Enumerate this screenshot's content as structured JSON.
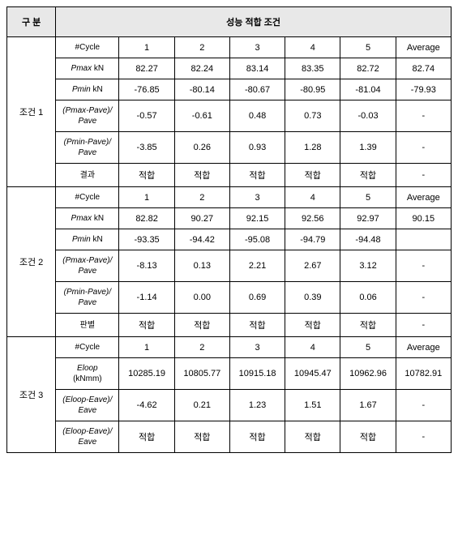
{
  "header": {
    "col1": "구 분",
    "merged": "성능 적합 조건"
  },
  "groups": [
    {
      "label": "조건 1",
      "rows": [
        {
          "label_html": "#Cycle",
          "values": [
            "1",
            "2",
            "3",
            "4",
            "5",
            "Average"
          ]
        },
        {
          "label_html": "<span class='italic'>Pmax</span> kN",
          "values": [
            "82.27",
            "82.24",
            "83.14",
            "83.35",
            "82.72",
            "82.74"
          ]
        },
        {
          "label_html": "<span class='italic'>Pmin</span> kN",
          "values": [
            "-76.85",
            "-80.14",
            "-80.67",
            "-80.95",
            "-81.04",
            "-79.93"
          ]
        },
        {
          "label_html": "<span class='italic'>(Pmax-Pave)/<br>Pave</span>",
          "values": [
            "-0.57",
            "-0.61",
            "0.48",
            "0.73",
            "-0.03",
            "-"
          ]
        },
        {
          "label_html": "<span class='italic'>(Pmin-Pave)/<br>Pave</span>",
          "values": [
            "-3.85",
            "0.26",
            "0.93",
            "1.28",
            "1.39",
            "-"
          ]
        },
        {
          "label_html": "결과",
          "values": [
            "적합",
            "적합",
            "적합",
            "적합",
            "적합",
            "-"
          ]
        }
      ]
    },
    {
      "label": "조건 2",
      "rows": [
        {
          "label_html": "#Cycle",
          "values": [
            "1",
            "2",
            "3",
            "4",
            "5",
            "Average"
          ]
        },
        {
          "label_html": "<span class='italic'>Pmax</span> kN",
          "values": [
            "82.82",
            "90.27",
            "92.15",
            "92.56",
            "92.97",
            "90.15"
          ]
        },
        {
          "label_html": "<span class='italic'>Pmin</span> kN",
          "values": [
            "-93.35",
            "-94.42",
            "-95.08",
            "-94.79",
            "-94.48",
            ""
          ]
        },
        {
          "label_html": "<span class='italic'>(Pmax-Pave)/<br>Pave</span>",
          "values": [
            "-8.13",
            "0.13",
            "2.21",
            "2.67",
            "3.12",
            "-"
          ]
        },
        {
          "label_html": "<span class='italic'>(Pmin-Pave)/<br>Pave</span>",
          "values": [
            "-1.14",
            "0.00",
            "0.69",
            "0.39",
            "0.06",
            "-"
          ]
        },
        {
          "label_html": "판별",
          "values": [
            "적합",
            "적합",
            "적합",
            "적합",
            "적합",
            "-"
          ]
        }
      ]
    },
    {
      "label": "조건 3",
      "rows": [
        {
          "label_html": "#Cycle",
          "values": [
            "1",
            "2",
            "3",
            "4",
            "5",
            "Average"
          ]
        },
        {
          "label_html": "<span class='italic'>Eloop</span><br>(kNmm)",
          "values": [
            "10285.19",
            "10805.77",
            "10915.18",
            "10945.47",
            "10962.96",
            "10782.91"
          ]
        },
        {
          "label_html": "<span class='italic'>(Eloop-Eave)/<br>Eave</span>",
          "values": [
            "-4.62",
            "0.21",
            "1.23",
            "1.51",
            "1.67",
            "-"
          ]
        },
        {
          "label_html": "<span class='italic'>(Eloop-Eave)/<br>Eave</span>",
          "values": [
            "적합",
            "적합",
            "적합",
            "적합",
            "적합",
            "-"
          ]
        }
      ]
    }
  ]
}
